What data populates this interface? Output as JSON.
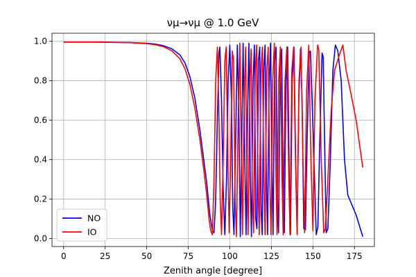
{
  "chart_data": {
    "type": "line",
    "title": "νμ→νμ @ 1.0 GeV",
    "xlabel": "Zenith angle [degree]",
    "ylabel": "",
    "xlim": [
      -7,
      187
    ],
    "ylim": [
      -0.04,
      1.04
    ],
    "xticks": [
      0,
      25,
      50,
      75,
      100,
      125,
      150,
      175
    ],
    "yticks": [
      0.0,
      0.2,
      0.4,
      0.6,
      0.8,
      1.0
    ],
    "grid": true,
    "legend_position": "lower-left",
    "series": [
      {
        "name": "NO",
        "color": "#0000ff",
        "points": [
          [
            0,
            0.995
          ],
          [
            20,
            0.995
          ],
          [
            40,
            0.993
          ],
          [
            50,
            0.989
          ],
          [
            55,
            0.985
          ],
          [
            60,
            0.977
          ],
          [
            65,
            0.962
          ],
          [
            70,
            0.93
          ],
          [
            73,
            0.89
          ],
          [
            76,
            0.82
          ],
          [
            79,
            0.71
          ],
          [
            82,
            0.55
          ],
          [
            84,
            0.42
          ],
          [
            86,
            0.29
          ],
          [
            88,
            0.12
          ],
          [
            89.5,
            0.04
          ],
          [
            90.5,
            0.03
          ],
          [
            91.5,
            0.2
          ],
          [
            92.5,
            0.6
          ],
          [
            93.5,
            0.94
          ],
          [
            94,
            0.97
          ],
          [
            95,
            0.7
          ],
          [
            96,
            0.25
          ],
          [
            97,
            0.02
          ],
          [
            98,
            0.3
          ],
          [
            99,
            0.8
          ],
          [
            100,
            0.98
          ],
          [
            101,
            0.7
          ],
          [
            101.8,
            0.15
          ],
          [
            102.5,
            0.02
          ],
          [
            103.5,
            0.5
          ],
          [
            104.5,
            0.98
          ],
          [
            105.5,
            0.6
          ],
          [
            106.3,
            0.01
          ],
          [
            107,
            0.4
          ],
          [
            108,
            0.99
          ],
          [
            109,
            0.4
          ],
          [
            109.8,
            0.02
          ],
          [
            110.6,
            0.6
          ],
          [
            111.5,
            0.99
          ],
          [
            112.3,
            0.3
          ],
          [
            113,
            0.01
          ],
          [
            114,
            0.8
          ],
          [
            114.8,
            0.98
          ],
          [
            115.6,
            0.1
          ],
          [
            116.3,
            0.05
          ],
          [
            117.2,
            0.9
          ],
          [
            118,
            0.97
          ],
          [
            118.8,
            0.15
          ],
          [
            119.5,
            0.02
          ],
          [
            120.4,
            0.85
          ],
          [
            121.2,
            0.98
          ],
          [
            122,
            0.3
          ],
          [
            122.7,
            0.02
          ],
          [
            123.6,
            0.75
          ],
          [
            124.5,
            0.99
          ],
          [
            125.3,
            0.4
          ],
          [
            126,
            0.02
          ],
          [
            127,
            0.9
          ],
          [
            127.8,
            0.97
          ],
          [
            128.6,
            0.2
          ],
          [
            129.3,
            0.03
          ],
          [
            130.3,
            0.85
          ],
          [
            131.2,
            0.96
          ],
          [
            132,
            0.3
          ],
          [
            132.8,
            0.03
          ],
          [
            133.8,
            0.8
          ],
          [
            134.8,
            0.97
          ],
          [
            135.7,
            0.35
          ],
          [
            136.5,
            0.02
          ],
          [
            137.5,
            0.8
          ],
          [
            138.6,
            0.97
          ],
          [
            139.6,
            0.4
          ],
          [
            140.5,
            0.03
          ],
          [
            141.5,
            0.7
          ],
          [
            142.5,
            0.96
          ],
          [
            143.5,
            0.7
          ],
          [
            144.5,
            0.05
          ],
          [
            145.5,
            0.045
          ],
          [
            146.5,
            0.5
          ],
          [
            147.8,
            0.94
          ],
          [
            148.5,
            0.95
          ],
          [
            149.5,
            0.7
          ],
          [
            151,
            0.3
          ],
          [
            152,
            0.02
          ],
          [
            153,
            0.06
          ],
          [
            154,
            0.45
          ],
          [
            155.5,
            0.94
          ],
          [
            156.2,
            0.92
          ],
          [
            157,
            0.5
          ],
          [
            158,
            0.03
          ],
          [
            159,
            0.05
          ],
          [
            160.5,
            0.4
          ],
          [
            162,
            0.85
          ],
          [
            163.5,
            0.98
          ],
          [
            165,
            0.95
          ],
          [
            167,
            0.8
          ],
          [
            169,
            0.4
          ],
          [
            171,
            0.22
          ],
          [
            176,
            0.12
          ],
          [
            180,
            0.01
          ]
        ]
      },
      {
        "name": "IO",
        "color": "#ff0000",
        "points": [
          [
            0,
            0.995
          ],
          [
            20,
            0.995
          ],
          [
            40,
            0.992
          ],
          [
            50,
            0.987
          ],
          [
            55,
            0.982
          ],
          [
            60,
            0.972
          ],
          [
            65,
            0.952
          ],
          [
            70,
            0.91
          ],
          [
            73,
            0.86
          ],
          [
            76,
            0.78
          ],
          [
            79,
            0.66
          ],
          [
            82,
            0.5
          ],
          [
            84,
            0.37
          ],
          [
            86,
            0.23
          ],
          [
            87.5,
            0.1
          ],
          [
            88.5,
            0.04
          ],
          [
            89.5,
            0.02
          ],
          [
            90.5,
            0.3
          ],
          [
            91.5,
            0.8
          ],
          [
            92.5,
            0.97
          ],
          [
            93.3,
            0.7
          ],
          [
            94.2,
            0.2
          ],
          [
            95,
            0.02
          ],
          [
            96,
            0.4
          ],
          [
            97,
            0.9
          ],
          [
            97.8,
            0.97
          ],
          [
            98.8,
            0.4
          ],
          [
            99.6,
            0.03
          ],
          [
            100.5,
            0.4
          ],
          [
            101.5,
            0.95
          ],
          [
            102.3,
            0.9
          ],
          [
            103.2,
            0.2
          ],
          [
            104,
            0.01
          ],
          [
            105,
            0.6
          ],
          [
            106,
            0.99
          ],
          [
            106.8,
            0.5
          ],
          [
            107.6,
            0.02
          ],
          [
            108.6,
            0.7
          ],
          [
            109.5,
            0.97
          ],
          [
            110.3,
            0.3
          ],
          [
            111,
            0.02
          ],
          [
            112,
            0.8
          ],
          [
            112.8,
            0.96
          ],
          [
            113.6,
            0.2
          ],
          [
            114.3,
            0.03
          ],
          [
            115.3,
            0.85
          ],
          [
            116.1,
            0.98
          ],
          [
            117,
            0.25
          ],
          [
            117.7,
            0.02
          ],
          [
            118.7,
            0.85
          ],
          [
            119.6,
            0.97
          ],
          [
            120.5,
            0.3
          ],
          [
            121.2,
            0.02
          ],
          [
            122.2,
            0.85
          ],
          [
            123.1,
            0.97
          ],
          [
            124,
            0.3
          ],
          [
            124.8,
            0.02
          ],
          [
            125.8,
            0.8
          ],
          [
            126.8,
            0.99
          ],
          [
            127.6,
            0.4
          ],
          [
            128.4,
            0.02
          ],
          [
            129.4,
            0.8
          ],
          [
            130.4,
            0.97
          ],
          [
            131.3,
            0.35
          ],
          [
            132.1,
            0.02
          ],
          [
            133.2,
            0.8
          ],
          [
            134.3,
            0.97
          ],
          [
            135.3,
            0.4
          ],
          [
            136.2,
            0.02
          ],
          [
            137.3,
            0.85
          ],
          [
            138.4,
            0.97
          ],
          [
            139.5,
            0.4
          ],
          [
            140.5,
            0.02
          ],
          [
            141.6,
            0.8
          ],
          [
            142.8,
            0.97
          ],
          [
            144,
            0.4
          ],
          [
            145,
            0.03
          ],
          [
            146.2,
            0.75
          ],
          [
            147.5,
            0.98
          ],
          [
            148.8,
            0.4
          ],
          [
            150,
            0.04
          ],
          [
            151.2,
            0.7
          ],
          [
            152.8,
            0.98
          ],
          [
            153.5,
            0.96
          ],
          [
            155,
            0.4
          ],
          [
            156.5,
            0.03
          ],
          [
            157.5,
            0.05
          ],
          [
            159,
            0.3
          ],
          [
            161,
            0.65
          ],
          [
            163,
            0.85
          ],
          [
            165.5,
            0.92
          ],
          [
            168,
            0.98
          ],
          [
            170,
            0.85
          ],
          [
            172.5,
            0.75
          ],
          [
            176,
            0.6
          ],
          [
            180,
            0.36
          ]
        ]
      }
    ]
  }
}
